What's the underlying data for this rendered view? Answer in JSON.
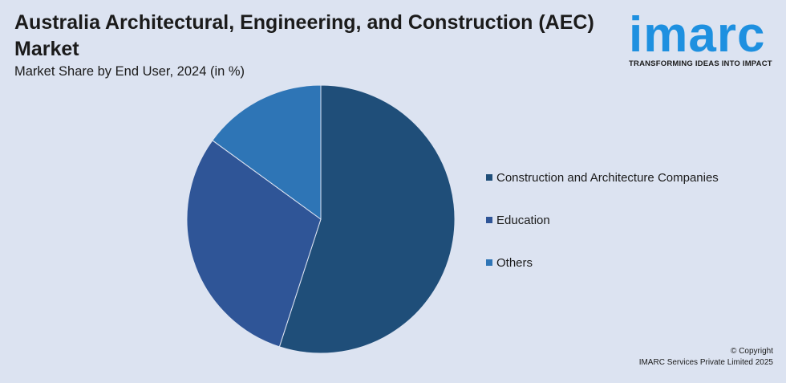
{
  "title": "Australia Architectural, Engineering, and Construction (AEC) Market",
  "subtitle": "Market Share by End User, 2024 (in %)",
  "logo": {
    "wordmark": "imarc",
    "tagline": "TRANSFORMING IDEAS INTO IMPACT"
  },
  "footer": {
    "copyright": "© Copyright",
    "company": "IMARC Services Private Limited 2025"
  },
  "colors": {
    "background": "#dce3f1",
    "logo": "#1e90e0"
  },
  "chart_data": {
    "type": "pie",
    "title": "Australia Architectural, Engineering, and Construction (AEC) Market",
    "subtitle": "Market Share by End User, 2024 (in %)",
    "legend_position": "right",
    "slices": [
      {
        "label": "Construction and Architecture Companies",
        "value": 55,
        "color": "#1f4e79"
      },
      {
        "label": "Education",
        "value": 30,
        "color": "#2f5597"
      },
      {
        "label": "Others",
        "value": 15,
        "color": "#2e75b6"
      }
    ]
  }
}
